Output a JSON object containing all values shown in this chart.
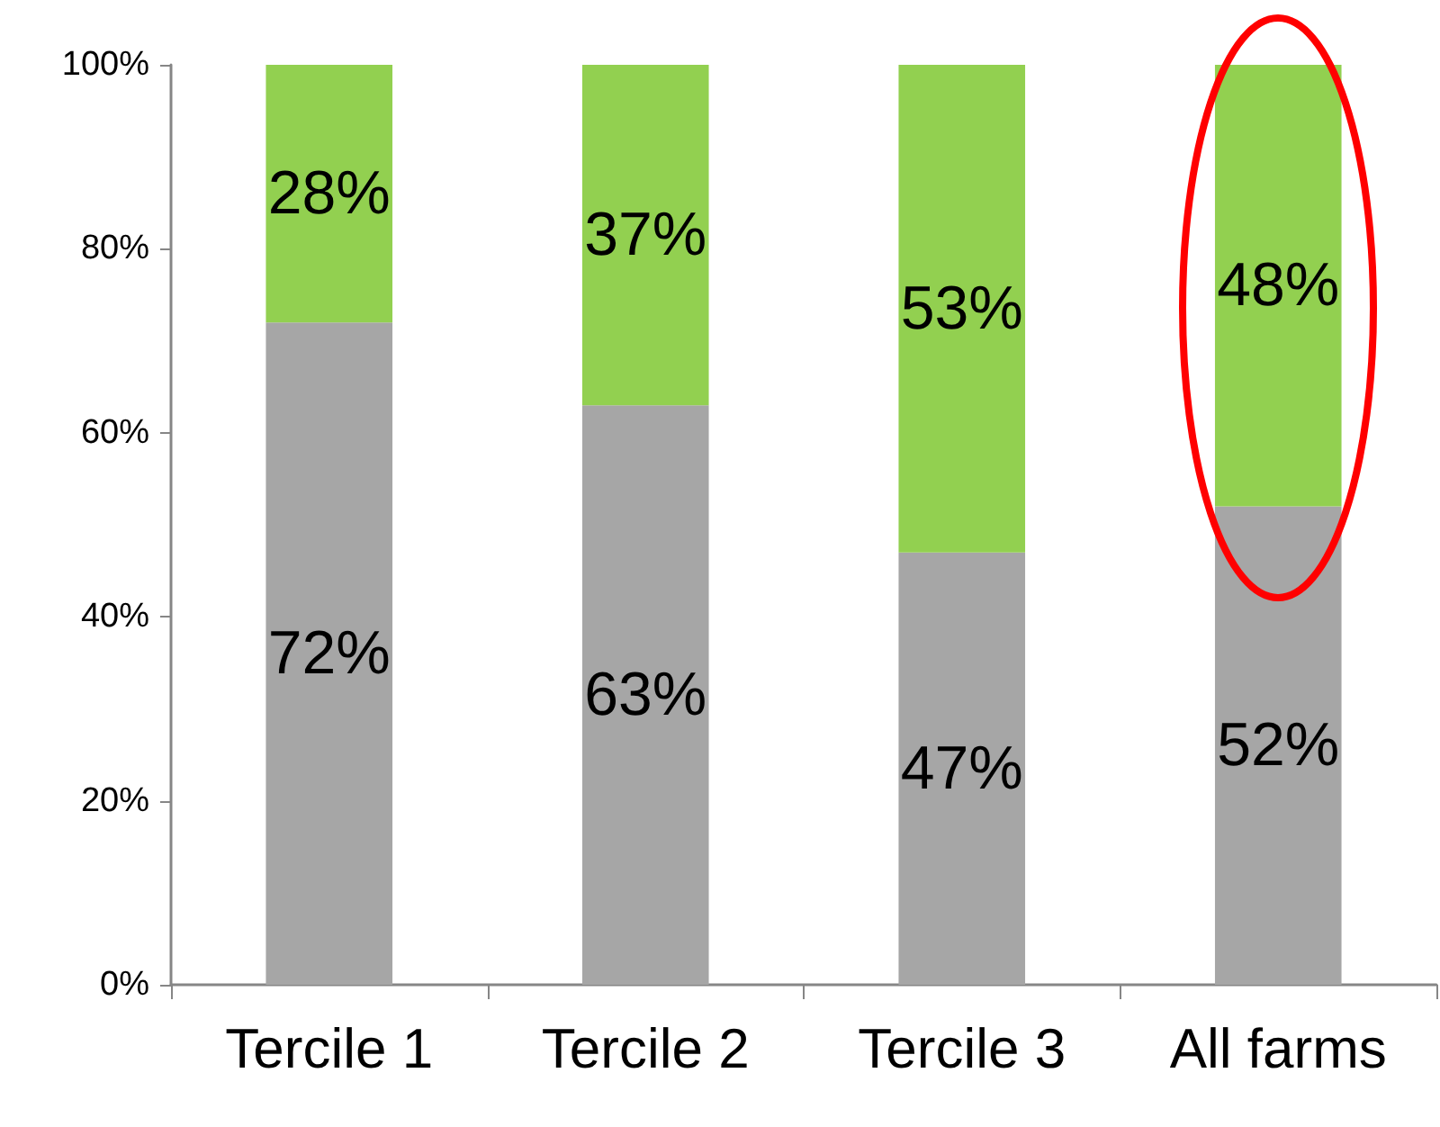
{
  "chart_data": {
    "type": "bar",
    "stacked": true,
    "categories": [
      "Tercile 1",
      "Tercile 2",
      "Tercile 3",
      "All farms"
    ],
    "series": [
      {
        "color": "#a6a6a6",
        "values": [
          72,
          63,
          47,
          52
        ],
        "value_labels": [
          "72%",
          "63%",
          "47%",
          "52%"
        ]
      },
      {
        "color": "#92d050",
        "values": [
          28,
          37,
          53,
          48
        ],
        "value_labels": [
          "28%",
          "37%",
          "53%",
          "48%"
        ]
      }
    ],
    "ylim": [
      0,
      100
    ],
    "yticks": [
      {
        "value": 0,
        "label": "0%"
      },
      {
        "value": 20,
        "label": "20%"
      },
      {
        "value": 40,
        "label": "40%"
      },
      {
        "value": 60,
        "label": "60%"
      },
      {
        "value": 80,
        "label": "80%"
      },
      {
        "value": 100,
        "label": "100%"
      }
    ],
    "grid": false
  }
}
